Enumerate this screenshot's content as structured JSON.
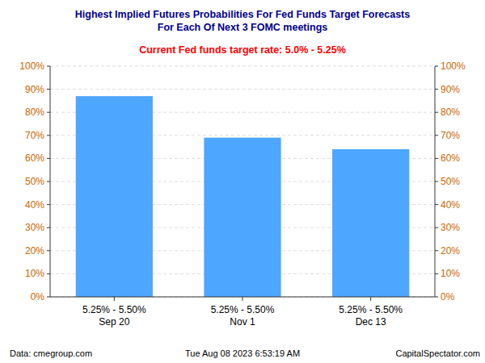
{
  "chart_data": {
    "type": "bar",
    "title": "Highest Implied Futures Probabilities For Fed Funds Target Forecasts\nFor Each Of Next 3 FOMC meetings",
    "subtitle": "Current Fed funds target rate: 5.0% - 5.25%",
    "categories": [
      "5.25% - 5.50%\nSep 20",
      "5.25% - 5.50%\nNov 1",
      "5.25% - 5.50%\nDec 13"
    ],
    "values": [
      87,
      69,
      64
    ],
    "color": "#4da6ff",
    "ylim": [
      0,
      100
    ],
    "yticks": [
      {
        "value": 0,
        "label": "0%"
      },
      {
        "value": 10,
        "label": "10%"
      },
      {
        "value": 20,
        "label": "20%"
      },
      {
        "value": 30,
        "label": "30%"
      },
      {
        "value": 40,
        "label": "40%"
      },
      {
        "value": 50,
        "label": "50%"
      },
      {
        "value": 60,
        "label": "60%"
      },
      {
        "value": 70,
        "label": "70%"
      },
      {
        "value": 80,
        "label": "80%"
      },
      {
        "value": 90,
        "label": "90%"
      },
      {
        "value": 100,
        "label": "100%"
      }
    ],
    "y2lim": [
      0,
      100
    ],
    "y2ticks": [
      {
        "value": 0,
        "label": "0%"
      },
      {
        "value": 10,
        "label": "10%"
      },
      {
        "value": 20,
        "label": "20%"
      },
      {
        "value": 30,
        "label": "30%"
      },
      {
        "value": 40,
        "label": "40%"
      },
      {
        "value": 50,
        "label": "50%"
      },
      {
        "value": 60,
        "label": "60%"
      },
      {
        "value": 70,
        "label": "70%"
      },
      {
        "value": 80,
        "label": "80%"
      },
      {
        "value": 90,
        "label": "90%"
      },
      {
        "value": 100,
        "label": "100%"
      }
    ],
    "grid": true,
    "annotations": [
      "Data: cmegroup.com",
      "Tue Aug 08 2023 6:53:19 AM",
      "CapitalSpectator.com"
    ]
  }
}
